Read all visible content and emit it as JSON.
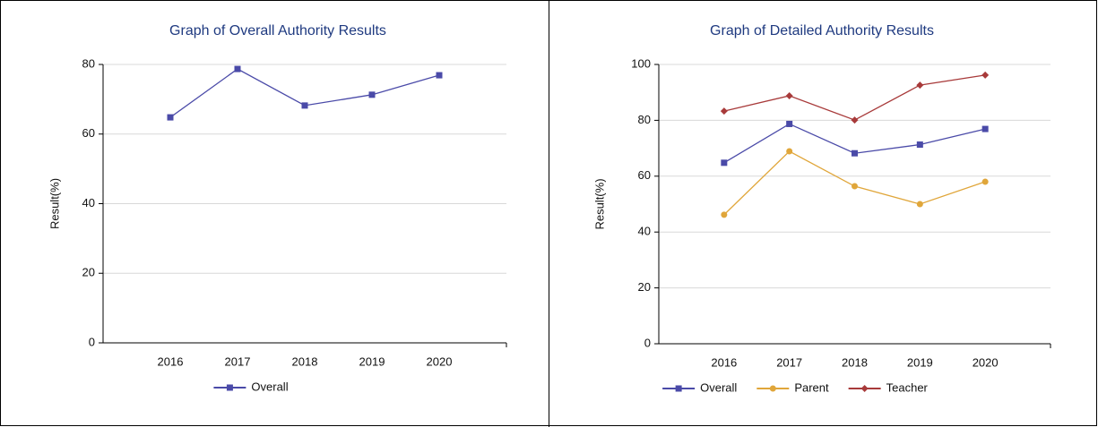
{
  "chart_data": [
    {
      "type": "line",
      "title": "Graph of Overall Authority Results",
      "y_label": "Result(%)",
      "categories": [
        "2016",
        "2017",
        "2018",
        "2019",
        "2020"
      ],
      "series": [
        {
          "name": "Overall",
          "color": "#4a4aa8",
          "marker": "square",
          "values": [
            64.8,
            78.7,
            68.2,
            71.3,
            76.9
          ]
        }
      ],
      "ylim": [
        0,
        80
      ],
      "yticks": [
        0,
        20,
        40,
        60,
        80
      ],
      "grid": true,
      "legend": "bottom"
    },
    {
      "type": "line",
      "title": "Graph of Detailed Authority Results",
      "y_label": "Result(%)",
      "categories": [
        "2016",
        "2017",
        "2018",
        "2019",
        "2020"
      ],
      "series": [
        {
          "name": "Overall",
          "color": "#4a4aa8",
          "marker": "square",
          "values": [
            64.8,
            78.7,
            68.2,
            71.3,
            76.9
          ]
        },
        {
          "name": "Parent",
          "color": "#e0a63a",
          "marker": "circle",
          "values": [
            46.2,
            68.9,
            56.4,
            50.0,
            58.0
          ]
        },
        {
          "name": "Teacher",
          "color": "#a83a3a",
          "marker": "diamond",
          "values": [
            83.3,
            88.8,
            80.1,
            92.6,
            96.2
          ]
        }
      ],
      "ylim": [
        0,
        100
      ],
      "yticks": [
        0,
        20,
        40,
        60,
        80,
        100
      ],
      "grid": true,
      "legend": "bottom"
    }
  ]
}
